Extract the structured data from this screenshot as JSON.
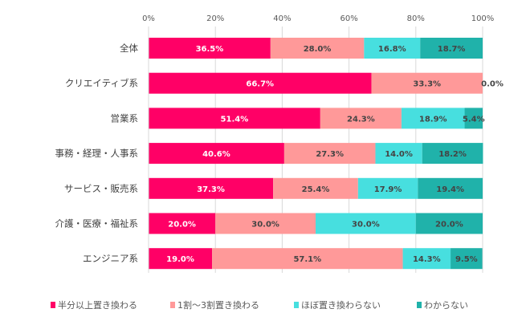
{
  "chart_data": {
    "type": "bar",
    "orientation": "horizontal",
    "stacked": true,
    "categories": [
      "全体",
      "クリエイティブ系",
      "営業系",
      "事務・経理・人事系",
      "サービス・販売系",
      "介護・医療・福祉系",
      "エンジニア系"
    ],
    "series": [
      {
        "name": "半分以上置き換わる",
        "color": "#ff0066",
        "label_color": "#ffffff",
        "values": [
          36.5,
          66.7,
          51.4,
          40.6,
          37.3,
          20.0,
          19.0
        ]
      },
      {
        "name": "1割～3割置き換わる",
        "color": "#ff9999",
        "label_color": "#444444",
        "values": [
          28.0,
          33.3,
          24.3,
          27.3,
          25.4,
          30.0,
          57.1
        ]
      },
      {
        "name": "ほぼ置き換わらない",
        "color": "#47dfdf",
        "label_color": "#444444",
        "values": [
          16.8,
          0.0,
          18.9,
          14.0,
          17.9,
          30.0,
          14.3
        ]
      },
      {
        "name": "わからない",
        "color": "#20b2aa",
        "label_color": "#444444",
        "values": [
          18.7,
          0.0,
          5.4,
          18.2,
          19.4,
          20.0,
          9.5
        ]
      }
    ],
    "data_labels": [
      [
        "36.5%",
        "28.0%",
        "16.8%",
        "18.7%"
      ],
      [
        "66.7%",
        "33.3%",
        "",
        "0.0%"
      ],
      [
        "51.4%",
        "24.3%",
        "18.9%",
        "5.4%"
      ],
      [
        "40.6%",
        "27.3%",
        "14.0%",
        "18.2%"
      ],
      [
        "37.3%",
        "25.4%",
        "17.9%",
        "19.4%"
      ],
      [
        "20.0%",
        "30.0%",
        "30.0%",
        "20.0%"
      ],
      [
        "19.0%",
        "57.1%",
        "14.3%",
        "9.5%"
      ]
    ],
    "xlim": [
      0,
      100
    ],
    "xticks": [
      "0%",
      "20%",
      "40%",
      "60%",
      "80%",
      "100%"
    ],
    "grid": true,
    "legend": "bottom"
  }
}
